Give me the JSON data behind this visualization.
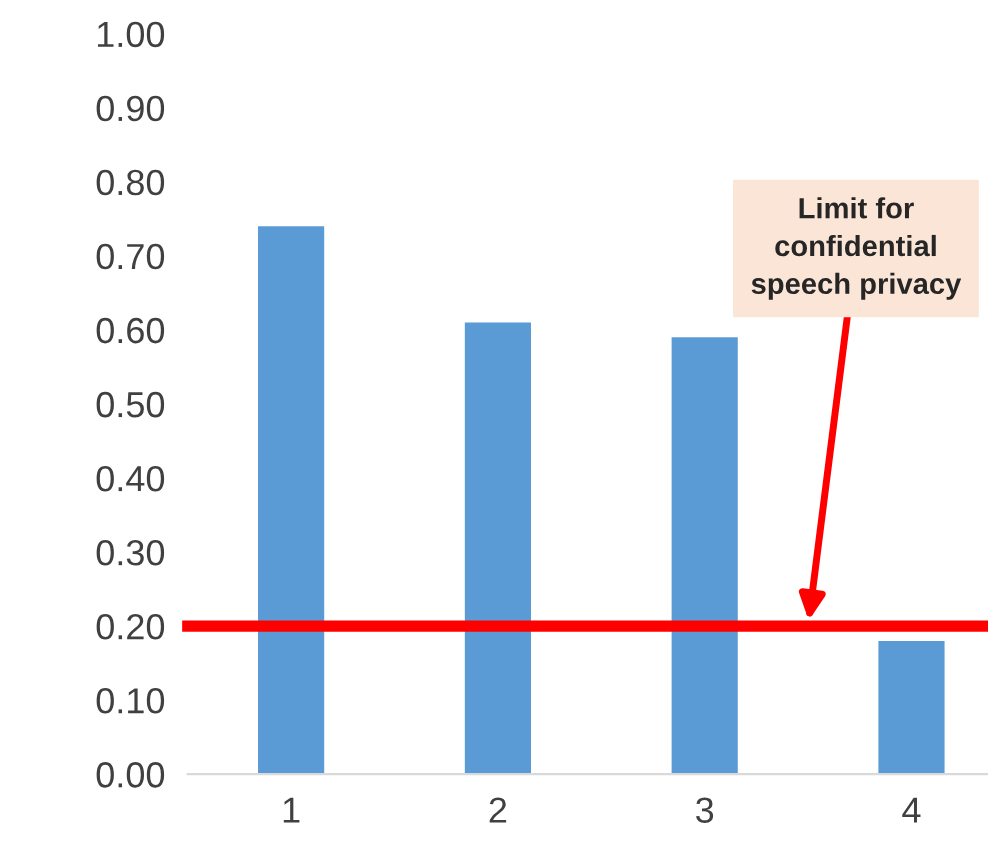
{
  "chart_data": {
    "type": "bar",
    "categories": [
      "1",
      "2",
      "3",
      "4"
    ],
    "values": [
      0.74,
      0.61,
      0.59,
      0.18
    ],
    "color": "#5b9bd5",
    "ylim": [
      0,
      1
    ],
    "yticks": [
      {
        "value": 0,
        "label": "0.00"
      },
      {
        "value": 0.1,
        "label": "0.10"
      },
      {
        "value": 0.2,
        "label": "0.20"
      },
      {
        "value": 0.3,
        "label": "0.30"
      },
      {
        "value": 0.4,
        "label": "0.40"
      },
      {
        "value": 0.5,
        "label": "0.50"
      },
      {
        "value": 0.6,
        "label": "0.60"
      },
      {
        "value": 0.7,
        "label": "0.70"
      },
      {
        "value": 0.8,
        "label": "0.80"
      },
      {
        "value": 0.9,
        "label": "0.90"
      },
      {
        "value": 1,
        "label": "1.00"
      }
    ],
    "grid": false,
    "ref_lines": [
      {
        "axis": "y",
        "value": 0.2,
        "label": "Limit for\nconfidential\nspeech privacy",
        "color": "#ff0000",
        "line_style": "solid"
      }
    ]
  }
}
